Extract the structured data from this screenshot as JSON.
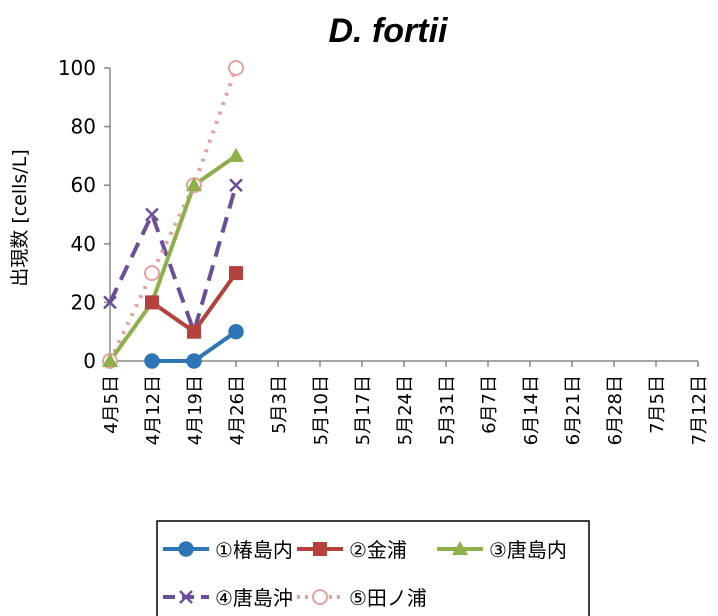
{
  "chart_data": {
    "type": "line",
    "title": "D. fortii",
    "ylabel": "出現数 [cells/L]",
    "xlabel": "",
    "ylim": [
      0,
      100
    ],
    "yticks": [
      0,
      20,
      40,
      60,
      80,
      100
    ],
    "categories": [
      "4月5日",
      "4月12日",
      "4月19日",
      "4月26日",
      "5月3日",
      "5月10日",
      "5月17日",
      "5月24日",
      "5月31日",
      "6月7日",
      "6月14日",
      "6月21日",
      "6月28日",
      "7月5日",
      "7月12日"
    ],
    "grid": false,
    "legend_position": "bottom",
    "series": [
      {
        "name": "①椿島内",
        "color": "#2e75b6",
        "marker": "circle-filled",
        "dash": "solid",
        "values": [
          null,
          0,
          0,
          10,
          null,
          null,
          null,
          null,
          null,
          null,
          null,
          null,
          null,
          null,
          null
        ]
      },
      {
        "name": "②金浦",
        "color": "#b5413c",
        "marker": "square",
        "dash": "solid",
        "values": [
          null,
          20,
          10,
          30,
          null,
          null,
          null,
          null,
          null,
          null,
          null,
          null,
          null,
          null,
          null
        ]
      },
      {
        "name": "③唐島内",
        "color": "#8db04a",
        "marker": "triangle",
        "dash": "solid",
        "values": [
          0,
          20,
          60,
          70,
          null,
          null,
          null,
          null,
          null,
          null,
          null,
          null,
          null,
          null,
          null
        ]
      },
      {
        "name": "④唐島沖",
        "color": "#6b4e9b",
        "marker": "x",
        "dash": "dashed",
        "values": [
          20,
          50,
          10,
          60,
          null,
          null,
          null,
          null,
          null,
          null,
          null,
          null,
          null,
          null,
          null
        ]
      },
      {
        "name": "⑤田ノ浦",
        "color": "#e8a09c",
        "marker": "circle-open",
        "dash": "dotted",
        "values": [
          0,
          30,
          60,
          100,
          null,
          null,
          null,
          null,
          null,
          null,
          null,
          null,
          null,
          null,
          null
        ]
      }
    ]
  }
}
